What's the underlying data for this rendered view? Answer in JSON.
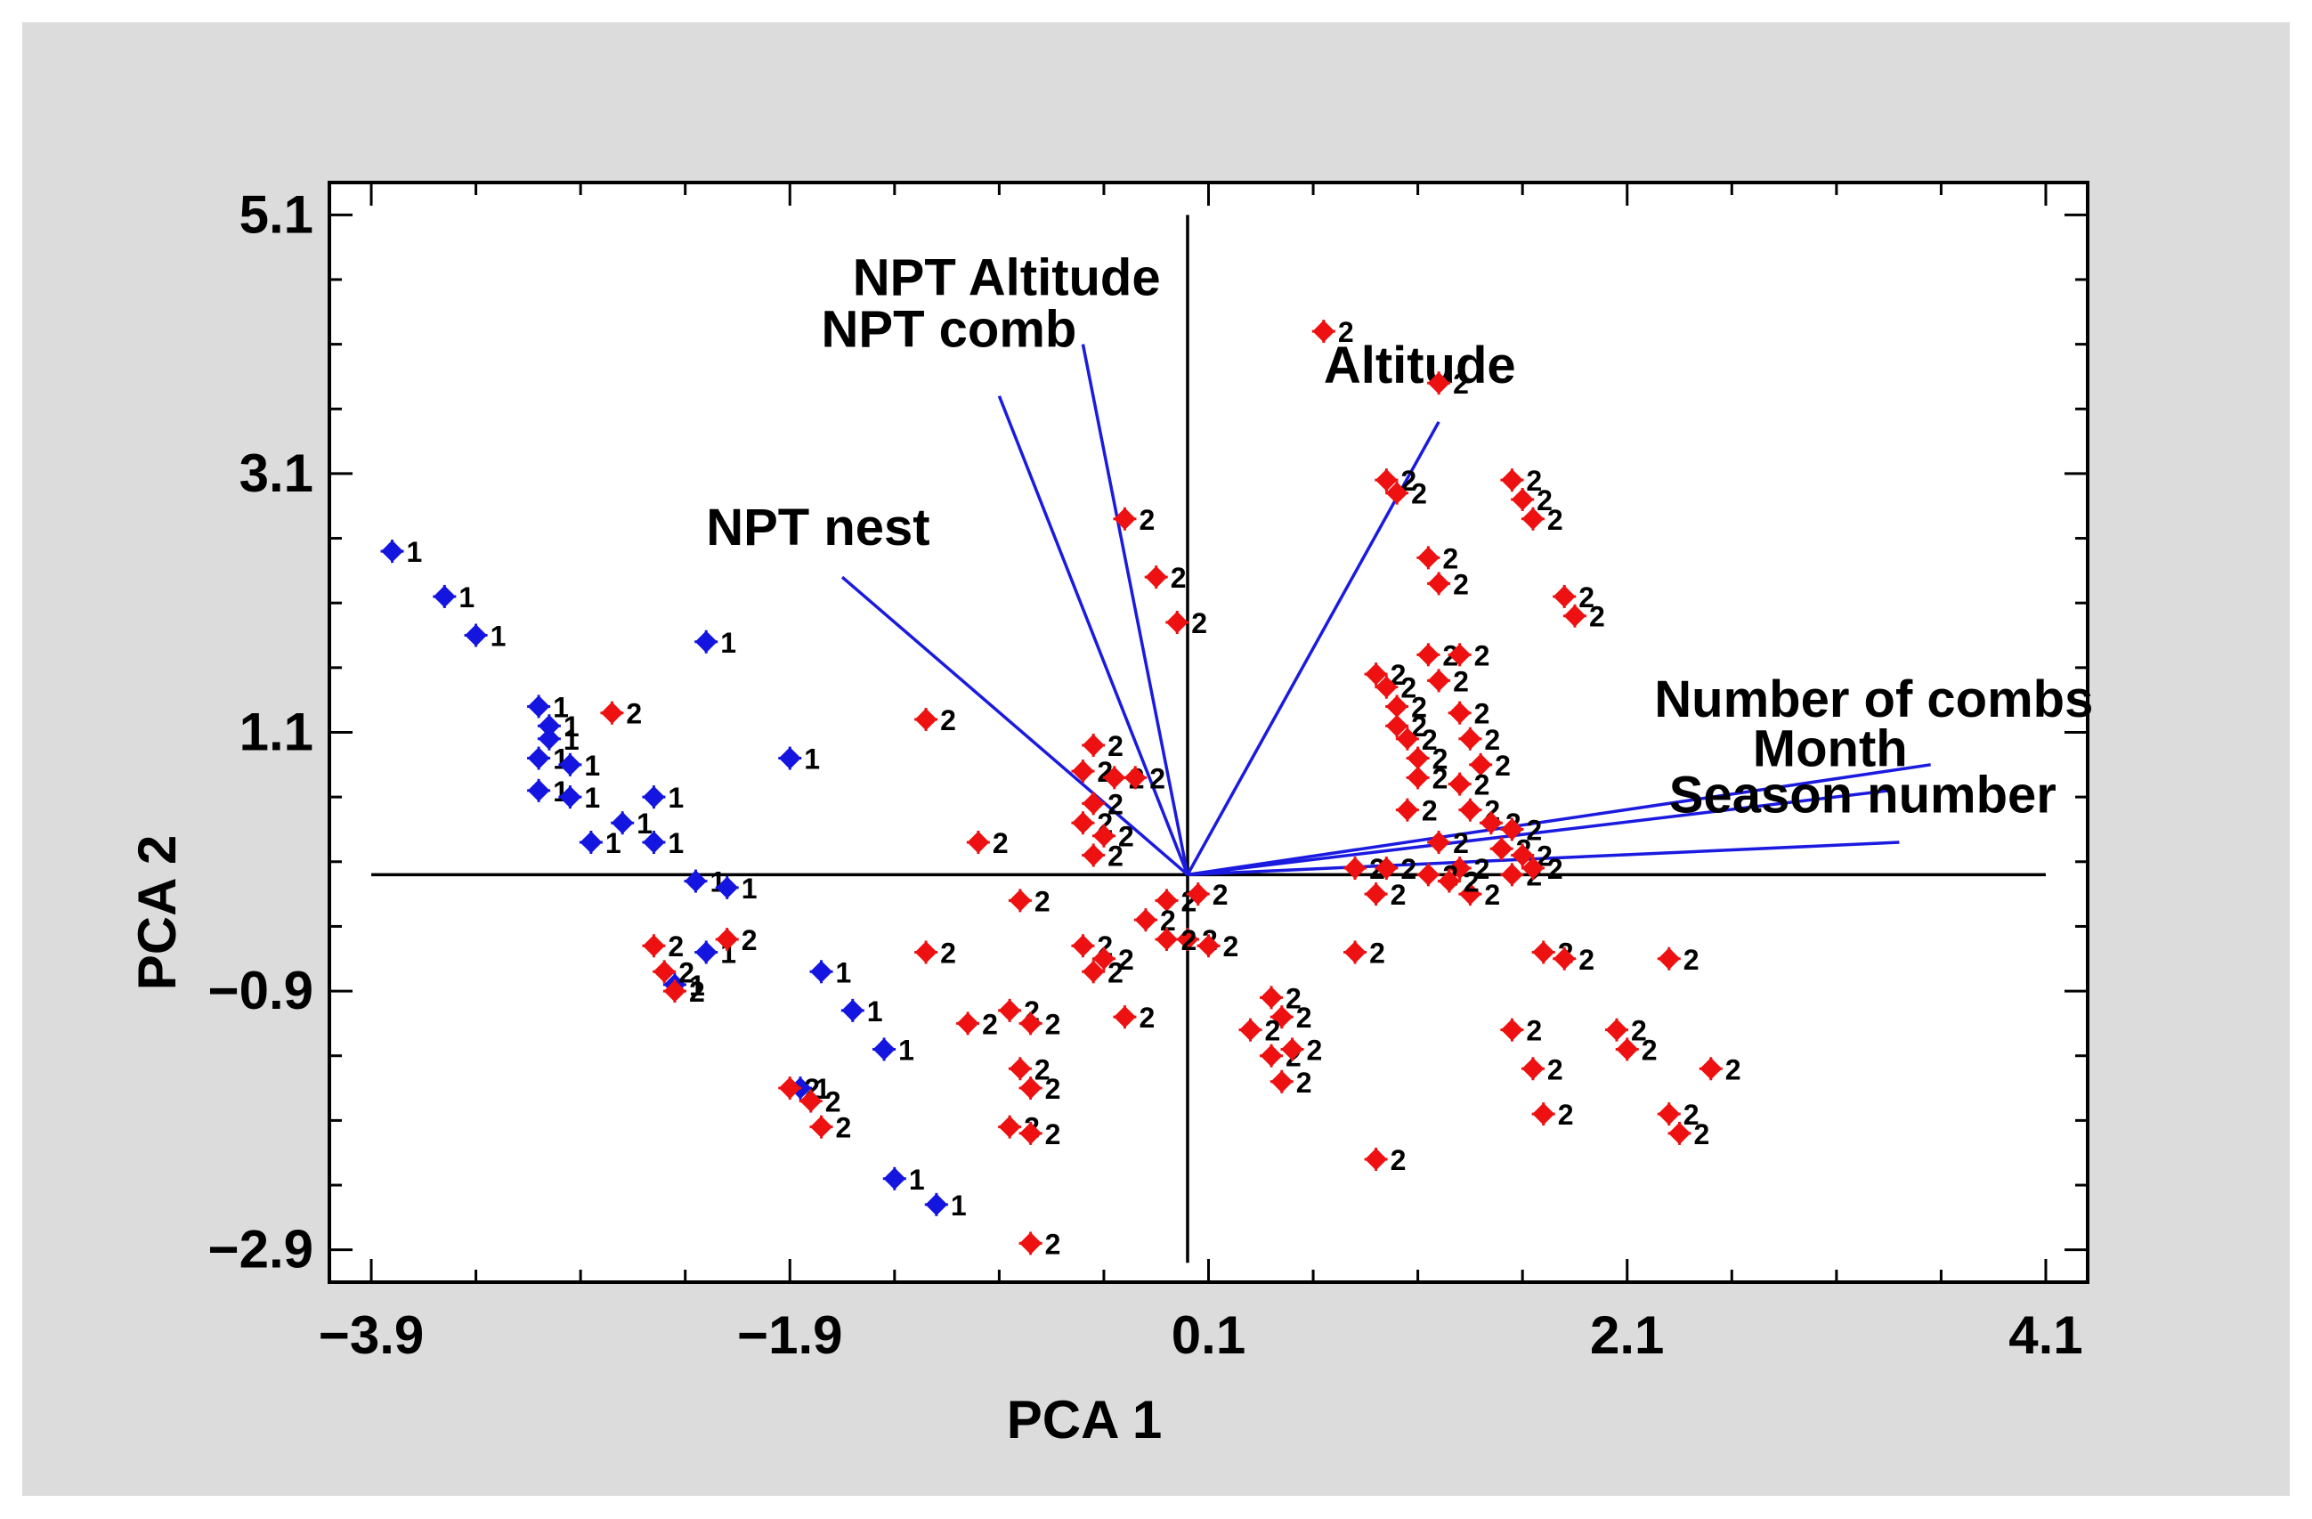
{
  "chart_data": {
    "type": "scatter",
    "title": "",
    "xlabel": "PCA 1",
    "ylabel": "PCA 2",
    "xlim": [
      -4.1,
      4.3
    ],
    "ylim": [
      -3.15,
      5.35
    ],
    "xticks": [
      -3.9,
      -1.9,
      0.1,
      2.1,
      4.1
    ],
    "yticks": [
      5.1,
      3.1,
      1.1,
      -0.9,
      -2.9
    ],
    "xtick_labels": [
      "−3.9",
      "−1.9",
      "0.1",
      "2.1",
      "4.1"
    ],
    "ytick_labels": [
      "5.1",
      "3.1",
      "1.1",
      "−0.9",
      "−2.9"
    ],
    "minor_per_major": 4,
    "colors": {
      "group1": "#1515e0",
      "group2": "#ee1111",
      "vector": "#1a1ae0",
      "axes": "#000000",
      "background": "#dcdcdc"
    },
    "vectors": [
      {
        "label": "NPT Altitude",
        "x": -0.5,
        "y": 4.1
      },
      {
        "label": "NPT  comb",
        "x": -0.9,
        "y": 3.7
      },
      {
        "label": "NPT nest",
        "x": -1.65,
        "y": 2.3
      },
      {
        "label": "Altitude",
        "x": 1.2,
        "y": 3.5
      },
      {
        "label": "Number of combs",
        "x": 3.55,
        "y": 0.85
      },
      {
        "label": "Month",
        "x": 3.35,
        "y": 0.65
      },
      {
        "label": "Season number",
        "x": 3.4,
        "y": 0.25
      }
    ],
    "vector_label_positions": [
      {
        "x": -1.6,
        "y": 4.48
      },
      {
        "x": -1.75,
        "y": 4.08
      },
      {
        "x": -2.3,
        "y": 2.55
      },
      {
        "x": 0.65,
        "y": 3.8
      },
      {
        "x": 2.23,
        "y": 1.22
      },
      {
        "x": 2.7,
        "y": 0.84
      },
      {
        "x": 2.3,
        "y": 0.48
      }
    ],
    "series": [
      {
        "name": "1",
        "color": "#1515e0",
        "points": [
          [
            -3.8,
            2.5
          ],
          [
            -3.55,
            2.15
          ],
          [
            -3.4,
            1.85
          ],
          [
            -3.1,
            1.3
          ],
          [
            -3.05,
            1.15
          ],
          [
            -3.05,
            1.05
          ],
          [
            -3.1,
            0.9
          ],
          [
            -2.95,
            0.85
          ],
          [
            -3.1,
            0.65
          ],
          [
            -2.95,
            0.6
          ],
          [
            -2.85,
            0.25
          ],
          [
            -2.7,
            0.4
          ],
          [
            -2.55,
            0.6
          ],
          [
            -2.55,
            0.25
          ],
          [
            -2.35,
            -0.05
          ],
          [
            -2.2,
            -0.1
          ],
          [
            -2.3,
            1.8
          ],
          [
            -1.9,
            0.9
          ],
          [
            -1.75,
            -0.75
          ],
          [
            -1.6,
            -1.05
          ],
          [
            -1.45,
            -1.35
          ],
          [
            -1.4,
            -2.35
          ],
          [
            -1.2,
            -2.55
          ],
          [
            -2.3,
            -0.6
          ],
          [
            -2.45,
            -0.85
          ],
          [
            -1.85,
            -1.65
          ]
        ]
      },
      {
        "name": "2",
        "color": "#ee1111",
        "points": [
          [
            0.65,
            4.2
          ],
          [
            1.2,
            3.8
          ],
          [
            0.95,
            3.05
          ],
          [
            1.0,
            2.95
          ],
          [
            1.55,
            3.05
          ],
          [
            1.6,
            2.9
          ],
          [
            1.65,
            2.75
          ],
          [
            1.15,
            2.45
          ],
          [
            1.2,
            2.25
          ],
          [
            1.8,
            2.15
          ],
          [
            1.85,
            2.0
          ],
          [
            1.15,
            1.7
          ],
          [
            1.3,
            1.7
          ],
          [
            1.2,
            1.5
          ],
          [
            0.9,
            1.55
          ],
          [
            0.95,
            1.45
          ],
          [
            1.0,
            1.3
          ],
          [
            1.0,
            1.15
          ],
          [
            1.05,
            1.05
          ],
          [
            1.1,
            0.9
          ],
          [
            1.1,
            0.75
          ],
          [
            1.05,
            0.5
          ],
          [
            1.3,
            1.25
          ],
          [
            1.35,
            1.05
          ],
          [
            1.4,
            0.85
          ],
          [
            1.3,
            0.7
          ],
          [
            1.35,
            0.5
          ],
          [
            1.45,
            0.4
          ],
          [
            1.55,
            0.35
          ],
          [
            1.5,
            0.2
          ],
          [
            1.6,
            0.15
          ],
          [
            1.55,
            0.0
          ],
          [
            1.65,
            0.05
          ],
          [
            1.3,
            0.05
          ],
          [
            1.35,
            -0.15
          ],
          [
            1.2,
            0.25
          ],
          [
            1.15,
            0.0
          ],
          [
            0.8,
            0.05
          ],
          [
            0.95,
            0.05
          ],
          [
            0.9,
            -0.15
          ],
          [
            1.25,
            -0.05
          ],
          [
            0.8,
            -0.6
          ],
          [
            1.7,
            -0.6
          ],
          [
            1.8,
            -0.65
          ],
          [
            2.3,
            -0.65
          ],
          [
            1.55,
            -1.2
          ],
          [
            1.65,
            -1.5
          ],
          [
            1.7,
            -1.85
          ],
          [
            2.05,
            -1.2
          ],
          [
            2.1,
            -1.35
          ],
          [
            2.5,
            -1.5
          ],
          [
            2.3,
            -1.85
          ],
          [
            2.35,
            -2.0
          ],
          [
            0.9,
            -2.2
          ],
          [
            0.4,
            -0.95
          ],
          [
            0.45,
            -1.1
          ],
          [
            0.3,
            -1.2
          ],
          [
            0.4,
            -1.4
          ],
          [
            0.5,
            -1.35
          ],
          [
            0.45,
            -1.6
          ],
          [
            -0.45,
            1.0
          ],
          [
            -0.5,
            0.8
          ],
          [
            -0.35,
            0.75
          ],
          [
            -0.25,
            0.75
          ],
          [
            -0.45,
            0.55
          ],
          [
            -0.5,
            0.4
          ],
          [
            -0.4,
            0.3
          ],
          [
            -0.45,
            0.15
          ],
          [
            -0.1,
            -0.2
          ],
          [
            0.05,
            -0.15
          ],
          [
            -0.2,
            -0.35
          ],
          [
            0.0,
            -0.5
          ],
          [
            -0.1,
            -0.5
          ],
          [
            0.1,
            -0.55
          ],
          [
            -0.5,
            -0.55
          ],
          [
            -0.45,
            -0.75
          ],
          [
            -0.4,
            -0.65
          ],
          [
            -0.3,
            -1.1
          ],
          [
            -0.3,
            2.75
          ],
          [
            -0.15,
            2.3
          ],
          [
            -0.05,
            1.95
          ],
          [
            -1.25,
            1.2
          ],
          [
            -1.0,
            0.25
          ],
          [
            -0.8,
            -0.2
          ],
          [
            -1.25,
            -0.6
          ],
          [
            -1.05,
            -1.15
          ],
          [
            -0.85,
            -1.05
          ],
          [
            -0.75,
            -1.15
          ],
          [
            -0.8,
            -1.5
          ],
          [
            -0.75,
            -1.65
          ],
          [
            -0.85,
            -1.95
          ],
          [
            -0.75,
            -2.0
          ],
          [
            -0.75,
            -2.85
          ],
          [
            -2.75,
            1.25
          ],
          [
            -2.55,
            -0.55
          ],
          [
            -2.5,
            -0.75
          ],
          [
            -2.45,
            -0.9
          ],
          [
            -2.2,
            -0.5
          ],
          [
            -1.9,
            -1.65
          ],
          [
            -1.8,
            -1.75
          ],
          [
            -1.75,
            -1.95
          ]
        ]
      }
    ]
  }
}
